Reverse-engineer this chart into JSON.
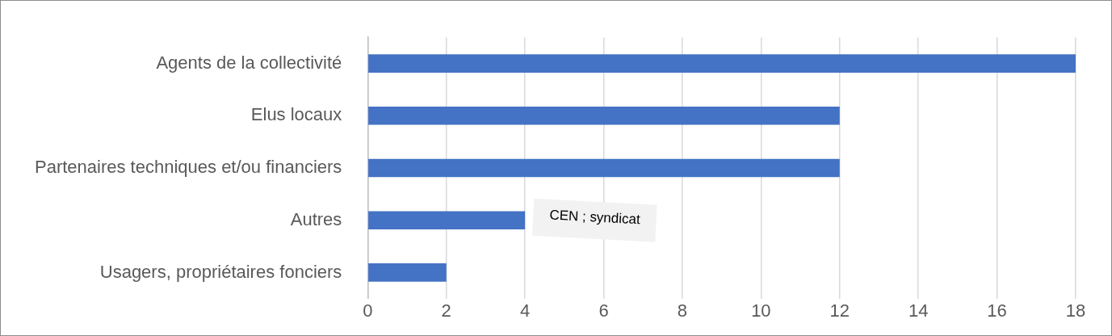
{
  "chart_data": {
    "type": "bar",
    "orientation": "horizontal",
    "categories": [
      "Agents de la collectivité",
      "Elus locaux",
      "Partenaires techniques et/ou financiers",
      "Autres",
      "Usagers, propriétaires fonciers"
    ],
    "values": [
      18,
      12,
      12,
      4,
      2
    ],
    "color": "#4472c4",
    "xlim": [
      0,
      18
    ],
    "xticks": [
      0,
      2,
      4,
      6,
      8,
      10,
      12,
      14,
      16,
      18
    ],
    "grid": "x",
    "legend": false,
    "annotations": [
      {
        "text": "CEN ; syndicat",
        "x": 4,
        "y": "Autres"
      }
    ]
  }
}
